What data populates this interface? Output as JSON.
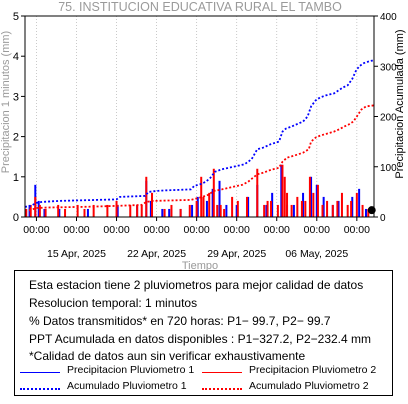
{
  "chart_data": {
    "type": "bar",
    "title": "75. INSTITUCION EDUCATIVA RURAL EL TAMBO",
    "xlabel": "Tiempo",
    "ylabel_left": "Precipitacion 1 minutos (mm)",
    "ylabel_right": "Precipitacion Acumulada (mm)",
    "ylim_left": [
      0,
      5
    ],
    "ylim_right": [
      0,
      400
    ],
    "yticks_left": [
      "0",
      "1",
      "2",
      "3",
      "4",
      "5"
    ],
    "yticks_right": [
      "0",
      "100",
      "200",
      "300",
      "400"
    ],
    "x_range_days": [
      0,
      30.5
    ],
    "xticks_time": [
      {
        "day": 1.0,
        "label": "00:00"
      },
      {
        "day": 4.5,
        "label": "00:00"
      },
      {
        "day": 8.0,
        "label": "00:00"
      },
      {
        "day": 11.5,
        "label": "00:00"
      },
      {
        "day": 15.0,
        "label": "00:00"
      },
      {
        "day": 18.5,
        "label": "00:00"
      },
      {
        "day": 22.0,
        "label": "00:00"
      },
      {
        "day": 25.5,
        "label": "00:00"
      },
      {
        "day": 29.0,
        "label": "00:00"
      }
    ],
    "xticks_date": [
      {
        "day": 4.5,
        "label": "15 Apr, 2025"
      },
      {
        "day": 11.5,
        "label": "22 Apr, 2025"
      },
      {
        "day": 18.5,
        "label": "29 Apr, 2025"
      },
      {
        "day": 25.5,
        "label": "06 May, 2025"
      }
    ],
    "series": [
      {
        "name": "Precipitacion Pluviometro 1",
        "kind": "bar",
        "color": "#0000ff",
        "points": [
          [
            0.1,
            0.2
          ],
          [
            0.4,
            0.3
          ],
          [
            0.9,
            0.8
          ],
          [
            1.2,
            0.4
          ],
          [
            1.7,
            0.2
          ],
          [
            3.0,
            0.2
          ],
          [
            5.5,
            0.2
          ],
          [
            8.1,
            0.3
          ],
          [
            9.8,
            0.3
          ],
          [
            10.6,
            0.9
          ],
          [
            11.0,
            0.4
          ],
          [
            12.0,
            0.2
          ],
          [
            12.6,
            0.2
          ],
          [
            13.6,
            0.2
          ],
          [
            14.6,
            0.3
          ],
          [
            15.1,
            0.5
          ],
          [
            15.9,
            0.4
          ],
          [
            16.4,
            0.7
          ],
          [
            17.0,
            0.9
          ],
          [
            17.6,
            0.3
          ],
          [
            18.5,
            0.3
          ],
          [
            19.5,
            0.5
          ],
          [
            20.3,
            0.8
          ],
          [
            21.1,
            0.3
          ],
          [
            21.6,
            0.6
          ],
          [
            22.4,
            1.3
          ],
          [
            22.9,
            0.3
          ],
          [
            23.5,
            0.3
          ],
          [
            24.3,
            0.6
          ],
          [
            25.0,
            1.0
          ],
          [
            25.5,
            0.8
          ],
          [
            26.1,
            0.5
          ],
          [
            26.9,
            0.3
          ],
          [
            27.4,
            0.4
          ],
          [
            28.6,
            0.5
          ],
          [
            29.2,
            0.7
          ],
          [
            29.8,
            0.2
          ]
        ]
      },
      {
        "name": "Precipitacion Pluviometro 2",
        "kind": "bar",
        "color": "#ff0000",
        "points": [
          [
            0.1,
            0.2
          ],
          [
            0.5,
            0.3
          ],
          [
            0.9,
            0.5
          ],
          [
            1.3,
            0.3
          ],
          [
            1.8,
            0.2
          ],
          [
            2.9,
            0.3
          ],
          [
            3.5,
            0.2
          ],
          [
            4.6,
            0.3
          ],
          [
            5.2,
            0.2
          ],
          [
            6.0,
            0.3
          ],
          [
            7.2,
            0.3
          ],
          [
            8.0,
            0.4
          ],
          [
            9.2,
            0.3
          ],
          [
            9.8,
            0.3
          ],
          [
            10.2,
            0.3
          ],
          [
            10.6,
            1.0
          ],
          [
            11.1,
            0.6
          ],
          [
            12.2,
            0.2
          ],
          [
            12.8,
            0.3
          ],
          [
            13.6,
            0.2
          ],
          [
            14.4,
            0.3
          ],
          [
            15.0,
            0.4
          ],
          [
            15.4,
            1.0
          ],
          [
            15.6,
            0.5
          ],
          [
            16.1,
            0.6
          ],
          [
            16.5,
            1.2
          ],
          [
            16.8,
            0.3
          ],
          [
            17.1,
            0.3
          ],
          [
            17.4,
            0.2
          ],
          [
            18.1,
            0.5
          ],
          [
            18.6,
            0.4
          ],
          [
            19.4,
            0.5
          ],
          [
            20.3,
            1.2
          ],
          [
            20.9,
            0.3
          ],
          [
            21.2,
            0.4
          ],
          [
            21.5,
            0.4
          ],
          [
            22.1,
            0.3
          ],
          [
            22.5,
            1.3
          ],
          [
            22.7,
            1.0
          ],
          [
            22.9,
            0.6
          ],
          [
            23.3,
            0.3
          ],
          [
            23.8,
            0.5
          ],
          [
            24.2,
            0.4
          ],
          [
            24.5,
            0.4
          ],
          [
            24.9,
            1.0
          ],
          [
            25.2,
            0.6
          ],
          [
            25.6,
            0.8
          ],
          [
            26.0,
            0.3
          ],
          [
            26.4,
            0.4
          ],
          [
            26.9,
            0.3
          ],
          [
            27.3,
            0.4
          ],
          [
            27.7,
            0.6
          ],
          [
            28.2,
            0.3
          ],
          [
            28.5,
            0.4
          ],
          [
            29.0,
            0.6
          ],
          [
            29.5,
            0.3
          ],
          [
            30.0,
            0.2
          ]
        ]
      },
      {
        "name": "Acumulado Pluviometro 1",
        "kind": "line",
        "axis": "right",
        "color": "#0000ff",
        "points": [
          [
            0.0,
            20
          ],
          [
            0.5,
            22
          ],
          [
            1.0,
            28
          ],
          [
            1.5,
            30
          ],
          [
            3.0,
            32
          ],
          [
            8.0,
            35
          ],
          [
            8.3,
            40
          ],
          [
            10.5,
            42
          ],
          [
            10.8,
            50
          ],
          [
            11.5,
            52
          ],
          [
            12.2,
            53
          ],
          [
            14.5,
            55
          ],
          [
            14.8,
            62
          ],
          [
            15.3,
            65
          ],
          [
            15.8,
            70
          ],
          [
            16.2,
            78
          ],
          [
            16.6,
            90
          ],
          [
            17.2,
            95
          ],
          [
            18.2,
            100
          ],
          [
            19.2,
            105
          ],
          [
            19.8,
            115
          ],
          [
            20.3,
            135
          ],
          [
            20.8,
            138
          ],
          [
            21.5,
            145
          ],
          [
            22.2,
            150
          ],
          [
            22.5,
            170
          ],
          [
            22.8,
            176
          ],
          [
            23.3,
            180
          ],
          [
            24.3,
            190
          ],
          [
            24.7,
            200
          ],
          [
            25.0,
            220
          ],
          [
            25.4,
            232
          ],
          [
            25.8,
            238
          ],
          [
            26.3,
            242
          ],
          [
            27.0,
            246
          ],
          [
            27.4,
            252
          ],
          [
            27.8,
            258
          ],
          [
            28.2,
            262
          ],
          [
            28.6,
            275
          ],
          [
            28.9,
            290
          ],
          [
            29.2,
            300
          ],
          [
            29.6,
            306
          ],
          [
            30.1,
            310
          ],
          [
            30.5,
            312
          ]
        ]
      },
      {
        "name": "Acumulado Pluviometro 2",
        "kind": "line",
        "axis": "right",
        "color": "#ff0000",
        "points": [
          [
            0.0,
            12
          ],
          [
            0.5,
            14
          ],
          [
            1.0,
            18
          ],
          [
            2.0,
            19
          ],
          [
            5.0,
            20
          ],
          [
            8.0,
            22
          ],
          [
            10.2,
            24
          ],
          [
            10.6,
            30
          ],
          [
            11.2,
            32
          ],
          [
            14.5,
            34
          ],
          [
            15.0,
            37
          ],
          [
            15.5,
            40
          ],
          [
            16.0,
            44
          ],
          [
            16.5,
            52
          ],
          [
            17.2,
            55
          ],
          [
            18.2,
            60
          ],
          [
            19.0,
            64
          ],
          [
            19.5,
            70
          ],
          [
            20.3,
            85
          ],
          [
            20.8,
            88
          ],
          [
            21.5,
            94
          ],
          [
            22.2,
            98
          ],
          [
            22.5,
            110
          ],
          [
            22.9,
            118
          ],
          [
            23.5,
            122
          ],
          [
            24.3,
            128
          ],
          [
            24.8,
            135
          ],
          [
            25.0,
            150
          ],
          [
            25.4,
            158
          ],
          [
            25.8,
            162
          ],
          [
            26.4,
            166
          ],
          [
            27.0,
            170
          ],
          [
            27.5,
            175
          ],
          [
            27.9,
            180
          ],
          [
            28.3,
            184
          ],
          [
            28.7,
            190
          ],
          [
            29.0,
            200
          ],
          [
            29.4,
            214
          ],
          [
            29.8,
            220
          ],
          [
            30.5,
            222
          ]
        ]
      }
    ],
    "marker": {
      "day": 30.3,
      "value": 0.12,
      "color": "#000000"
    }
  },
  "info": {
    "line1": "Esta estacion tiene 2 pluviometros para mejor calidad de datos",
    "line2": "Resolucion temporal: 1 minutos",
    "line3": "% Datos transmitidos* en 720 horas: P1− 99.7, P2− 99.7",
    "line4": "PPT Acumulada en datos disponibles : P1−327.2, P2−232.4 mm",
    "line5": "*Calidad de datos aun sin verificar exhaustivamente"
  },
  "legend": {
    "p1": "Precipitacion Pluviometro 1",
    "p2": "Precipitacion Pluviometro 2",
    "a1": "Acumulado Pluviometro 1",
    "a2": "Acumulado Pluviometro 2",
    "blue": "#0000ff",
    "red": "#ff0000"
  }
}
